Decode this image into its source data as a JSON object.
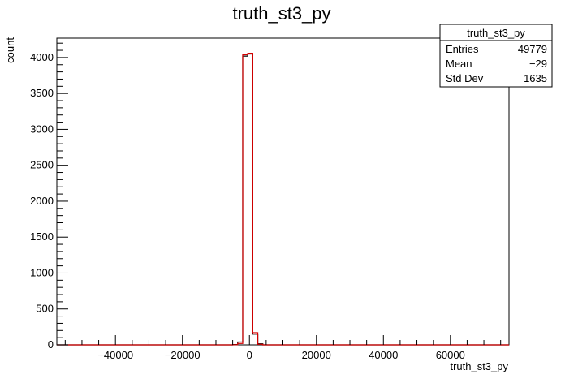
{
  "chart_data": {
    "type": "histogram",
    "title": "truth_st3_py",
    "xlabel": "truth_st3_py",
    "ylabel": "count",
    "xlim": [
      -57500,
      77500
    ],
    "ylim": [
      0,
      4270
    ],
    "xticks": [
      -40000,
      -20000,
      0,
      20000,
      40000,
      60000
    ],
    "xtick_labels": [
      "−40000",
      "−20000",
      "0",
      "20000",
      "40000",
      "60000"
    ],
    "yticks": [
      0,
      500,
      1000,
      1500,
      2000,
      2500,
      3000,
      3500,
      4000
    ],
    "yticks_labels": [
      "0",
      "500",
      "1000",
      "1500",
      "2000",
      "2500",
      "3000",
      "3500",
      "4000"
    ],
    "grid": false,
    "series": [
      {
        "color": "#000000",
        "bins": [
          {
            "x0": -5000,
            "x1": -3500,
            "y": 5
          },
          {
            "x0": -3500,
            "x1": -2000,
            "y": 40
          },
          {
            "x0": -2000,
            "x1": -500,
            "y": 4020
          },
          {
            "x0": -500,
            "x1": 1000,
            "y": 4050
          },
          {
            "x0": 1000,
            "x1": 2500,
            "y": 150
          },
          {
            "x0": 2500,
            "x1": 4000,
            "y": 15
          }
        ]
      },
      {
        "color": "#d40000",
        "bins": [
          {
            "x0": -5000,
            "x1": -3500,
            "y": 2
          },
          {
            "x0": -3500,
            "x1": -2000,
            "y": 20
          },
          {
            "x0": -2000,
            "x1": -500,
            "y": 4040
          },
          {
            "x0": -500,
            "x1": 1000,
            "y": 4060
          },
          {
            "x0": 1000,
            "x1": 2500,
            "y": 170
          },
          {
            "x0": 2500,
            "x1": 4000,
            "y": 8
          }
        ]
      }
    ]
  },
  "stats": {
    "title": "truth_st3_py",
    "rows": [
      {
        "label": "Entries",
        "value": "49779"
      },
      {
        "label": "Mean",
        "value": "−29"
      },
      {
        "label": "Std Dev",
        "value": "1635"
      }
    ]
  }
}
